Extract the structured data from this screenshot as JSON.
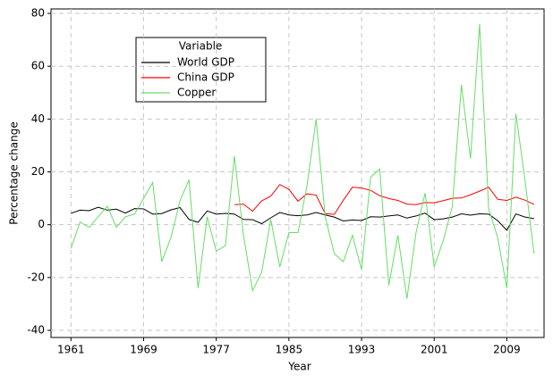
{
  "chart_data": {
    "type": "line",
    "x_label": "Year",
    "y_label": "Percentage change",
    "legend_title": "Variable",
    "legend_position": "upper left",
    "grid": true,
    "x": [
      1961,
      1962,
      1963,
      1964,
      1965,
      1966,
      1967,
      1968,
      1969,
      1970,
      1971,
      1972,
      1973,
      1974,
      1975,
      1976,
      1977,
      1978,
      1979,
      1980,
      1981,
      1982,
      1983,
      1984,
      1985,
      1986,
      1987,
      1988,
      1989,
      1990,
      1991,
      1992,
      1993,
      1994,
      1995,
      1996,
      1997,
      1998,
      1999,
      2000,
      2001,
      2002,
      2003,
      2004,
      2005,
      2006,
      2007,
      2008,
      2009,
      2010,
      2011,
      2012
    ],
    "series": [
      {
        "name": "World GDP",
        "color": "#000000",
        "values": [
          4.3,
          5.5,
          5.3,
          6.6,
          5.5,
          5.9,
          4.4,
          6.1,
          6.0,
          4.0,
          4.2,
          5.6,
          6.5,
          2.0,
          0.9,
          5.2,
          4.0,
          4.3,
          4.0,
          2.0,
          1.9,
          0.4,
          2.6,
          4.6,
          3.7,
          3.4,
          3.7,
          4.6,
          3.7,
          2.9,
          1.4,
          1.8,
          1.6,
          3.0,
          2.9,
          3.3,
          3.7,
          2.5,
          3.3,
          4.4,
          1.9,
          2.2,
          2.9,
          4.1,
          3.6,
          4.1,
          4.0,
          1.5,
          -2.1,
          4.1,
          2.9,
          2.3
        ]
      },
      {
        "name": "China GDP",
        "color": "#ff0000",
        "values": [
          null,
          null,
          null,
          null,
          null,
          null,
          null,
          null,
          null,
          null,
          null,
          null,
          null,
          null,
          null,
          null,
          null,
          null,
          7.6,
          7.8,
          5.1,
          9.0,
          10.8,
          15.2,
          13.4,
          8.9,
          11.7,
          11.2,
          4.2,
          3.9,
          9.3,
          14.2,
          13.9,
          13.0,
          11.0,
          9.9,
          9.2,
          7.8,
          7.6,
          8.4,
          8.3,
          9.1,
          10.0,
          10.1,
          11.3,
          12.7,
          14.2,
          9.6,
          9.2,
          10.4,
          9.3,
          7.7
        ]
      },
      {
        "name": "Copper",
        "color": "#66dd66",
        "values": [
          -9,
          1,
          -1,
          3,
          7,
          -1,
          3,
          4,
          10,
          16,
          -14,
          -5,
          9,
          17,
          -24,
          3,
          -10,
          -8,
          26,
          -4,
          -25,
          -18,
          2,
          -16,
          -3,
          -3,
          15,
          40,
          3,
          -11,
          -14,
          -4,
          -17,
          18,
          21,
          -23,
          -4,
          -28,
          -3,
          12,
          -16,
          -6,
          7,
          53,
          25,
          76,
          6,
          -5,
          -24,
          42,
          17,
          -11
        ]
      }
    ],
    "xlim": [
      1958.8,
      2013.1
    ],
    "xticks": [
      1961,
      1969,
      1977,
      1985,
      1993,
      2001,
      2009
    ],
    "ylim": [
      -42.7,
      81.7
    ],
    "yticks": [
      -40,
      -20,
      0,
      20,
      40,
      60,
      80
    ]
  }
}
